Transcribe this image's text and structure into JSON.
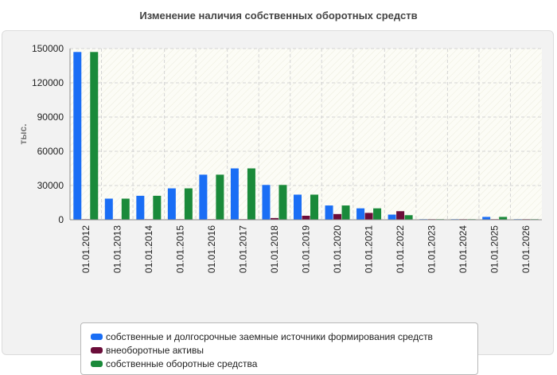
{
  "chart_data": {
    "type": "bar",
    "title": "Изменение наличия собственных оборотных средств",
    "ylabel": "тыс.",
    "xlabel": "",
    "ylim": [
      0,
      150000
    ],
    "yticks": [
      "0",
      "30000",
      "60000",
      "90000",
      "120000",
      "150000"
    ],
    "categories": [
      "01.01.2012",
      "01.01.2013",
      "01.01.2014",
      "01.01.2015",
      "01.01.2016",
      "01.01.2017",
      "01.01.2018",
      "01.01.2019",
      "01.01.2020",
      "01.01.2021",
      "01.01.2022",
      "01.01.2023",
      "01.01.2024",
      "01.01.2025",
      "01.01.2026"
    ],
    "grid": true,
    "legend_position": "bottom",
    "series": [
      {
        "name": "собственные и долгосрочные заемные источники формирования средств",
        "color": "#1a6ef5",
        "values": [
          147000,
          18500,
          21000,
          27500,
          39500,
          45000,
          30500,
          22000,
          12500,
          10000,
          4500,
          500,
          500,
          2500,
          500
        ]
      },
      {
        "name": "внеоборотные активы",
        "color": "#6b0d3a",
        "values": [
          500,
          500,
          500,
          500,
          500,
          500,
          1500,
          3500,
          5000,
          6000,
          7500,
          500,
          500,
          500,
          500
        ]
      },
      {
        "name": "собственные оборотные средства",
        "color": "#1a8a3a",
        "values": [
          147000,
          18500,
          21000,
          27500,
          39500,
          45000,
          30500,
          22000,
          12500,
          10000,
          4000,
          500,
          500,
          2500,
          500
        ]
      }
    ]
  }
}
